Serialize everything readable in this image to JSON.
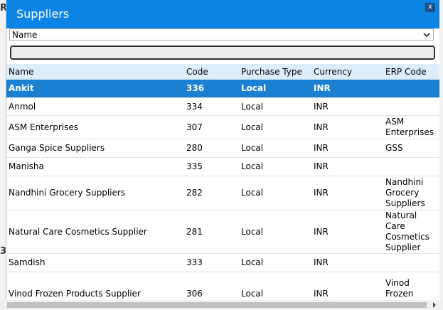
{
  "background": {
    "labels": [
      "RF",
      "3"
    ]
  },
  "dialog": {
    "title": "Suppliers",
    "close": "x",
    "select": "Name"
  },
  "table": {
    "columns": [
      "Name",
      "Code",
      "Purchase Type",
      "Currency",
      "ERP Code"
    ],
    "rows": [
      [
        "Ankit",
        "336",
        "Local",
        "INR",
        null
      ],
      [
        "Anmol",
        "334",
        "Local",
        "INR",
        null
      ],
      [
        "ASM Enterprises",
        "307",
        "Local",
        "INR",
        "ASM Enterprises"
      ],
      [
        "Ganga Spice Suppliers",
        "280",
        "Local",
        "INR",
        "GSS"
      ],
      [
        "Manisha",
        "335",
        "Local",
        "INR",
        null
      ],
      [
        "Nandhini Grocery Suppliers",
        "282",
        "Local",
        "INR",
        "Nandhini Grocery Suppliers"
      ],
      [
        "Natural Care Cosmetics Supplier",
        "281",
        "Local",
        "INR",
        "Natural Care Cosmetics Supplier"
      ],
      [
        "Samdish",
        "333",
        "Local",
        "INR",
        null
      ],
      [
        "Vinod Frozen Products Supplier",
        "306",
        "Local",
        "INR",
        "Vinod Frozen Products"
      ]
    ]
  }
}
